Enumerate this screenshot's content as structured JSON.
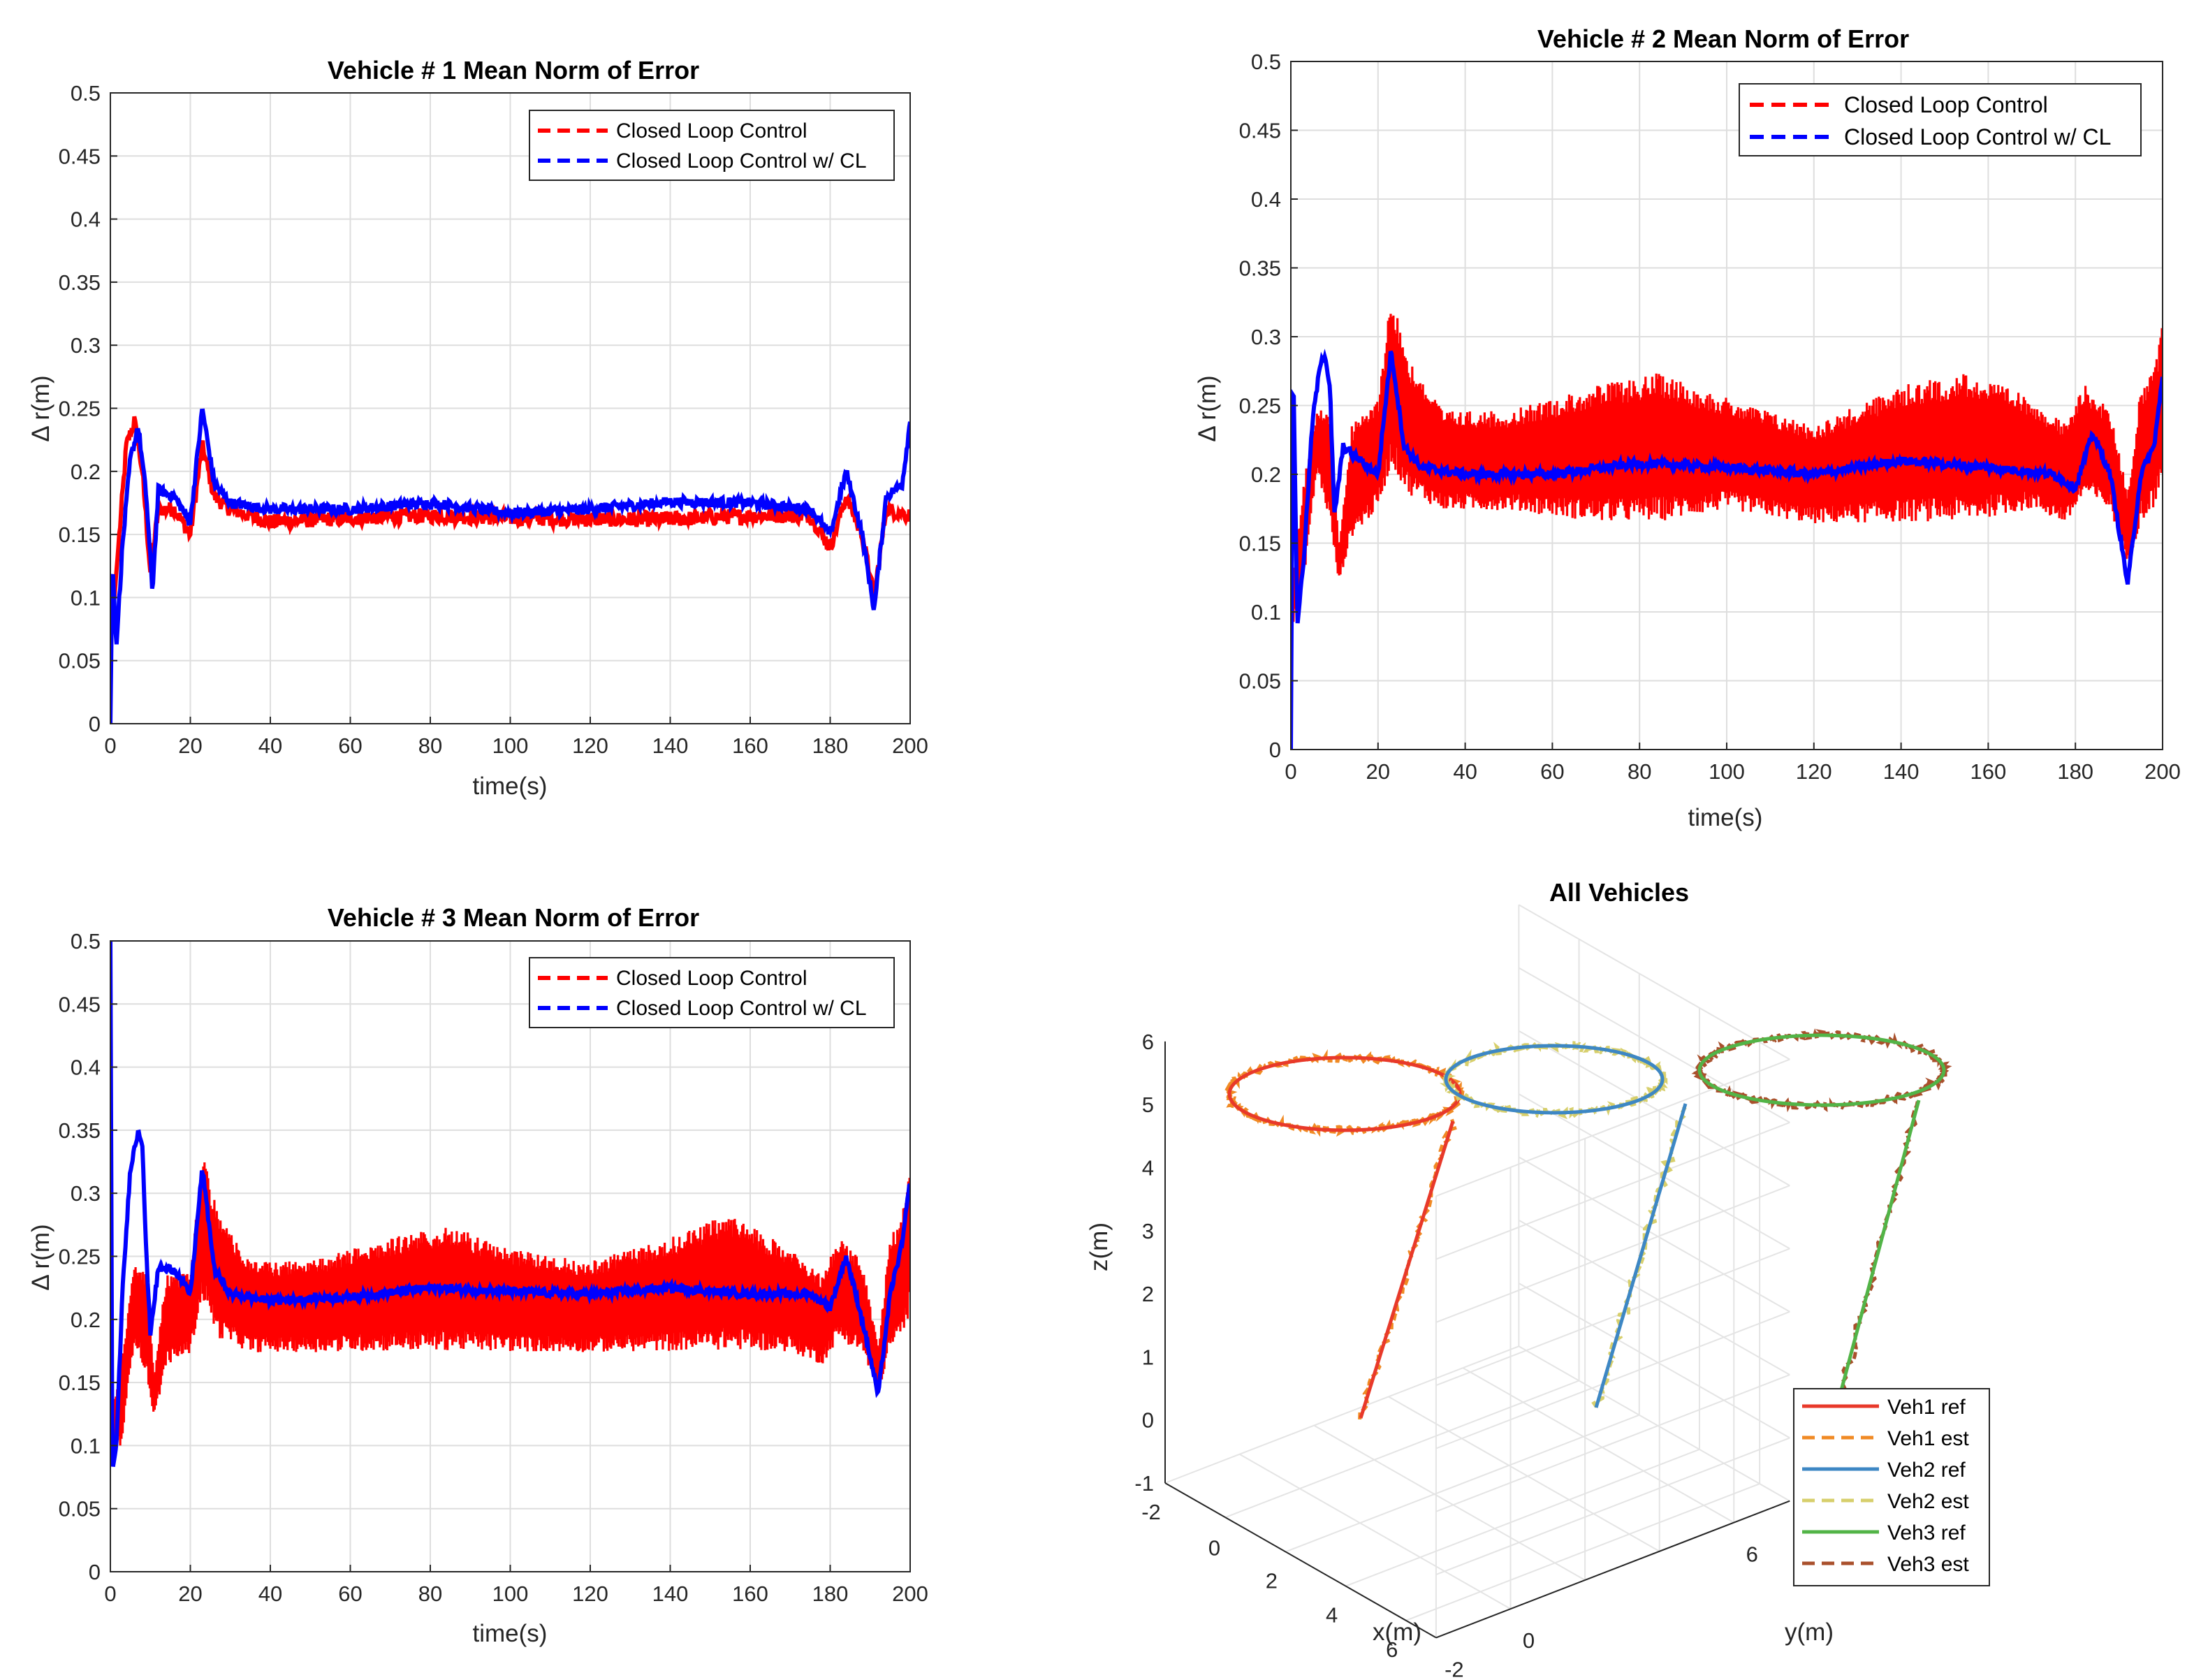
{
  "colors": {
    "red": "#ff0000",
    "blue": "#0000ff",
    "veh1": "#e8392a",
    "veh1est": "#f08a24",
    "veh2": "#3d87c4",
    "veh2est": "#d7cf6c",
    "veh3": "#52b447",
    "veh3est": "#a9502c"
  },
  "chart_data": [
    {
      "type": "line",
      "title": "Vehicle # 1 Mean Norm of Error",
      "xlabel": "time(s)",
      "ylabel": "Δ r(m)",
      "xlim": [
        0,
        200
      ],
      "ylim": [
        0,
        0.5
      ],
      "xticks": [
        "0",
        "20",
        "40",
        "60",
        "80",
        "100",
        "120",
        "140",
        "160",
        "180",
        "200"
      ],
      "yticks": [
        "0",
        "0.05",
        "0.1",
        "0.15",
        "0.2",
        "0.25",
        "0.3",
        "0.35",
        "0.4",
        "0.45",
        "0.5"
      ],
      "legend": [
        "Closed Loop Control",
        "Closed Loop Control w/ CL"
      ],
      "series": [
        {
          "name": "Closed Loop Control",
          "noise": 0.006,
          "points": [
            [
              0,
              0.06
            ],
            [
              2,
              0.14
            ],
            [
              4,
              0.22
            ],
            [
              6,
              0.24
            ],
            [
              8,
              0.2
            ],
            [
              10,
              0.12
            ],
            [
              12,
              0.17
            ],
            [
              16,
              0.17
            ],
            [
              20,
              0.15
            ],
            [
              23,
              0.22
            ],
            [
              26,
              0.18
            ],
            [
              30,
              0.17
            ],
            [
              40,
              0.16
            ],
            [
              60,
              0.163
            ],
            [
              80,
              0.165
            ],
            [
              100,
              0.163
            ],
            [
              120,
              0.162
            ],
            [
              140,
              0.162
            ],
            [
              160,
              0.165
            ],
            [
              175,
              0.165
            ],
            [
              180,
              0.14
            ],
            [
              184,
              0.18
            ],
            [
              188,
              0.15
            ],
            [
              191,
              0.1
            ],
            [
              194,
              0.17
            ],
            [
              200,
              0.165
            ]
          ]
        },
        {
          "name": "Closed Loop Control w/ CL",
          "noise": 0.004,
          "points": [
            [
              0,
              0.0
            ],
            [
              0.5,
              0.13
            ],
            [
              1.5,
              0.06
            ],
            [
              3,
              0.14
            ],
            [
              5,
              0.21
            ],
            [
              7,
              0.235
            ],
            [
              9,
              0.18
            ],
            [
              10.5,
              0.105
            ],
            [
              12,
              0.185
            ],
            [
              16,
              0.18
            ],
            [
              20,
              0.16
            ],
            [
              23,
              0.25
            ],
            [
              26,
              0.19
            ],
            [
              30,
              0.175
            ],
            [
              40,
              0.17
            ],
            [
              60,
              0.17
            ],
            [
              80,
              0.175
            ],
            [
              100,
              0.167
            ],
            [
              120,
              0.17
            ],
            [
              140,
              0.176
            ],
            [
              160,
              0.175
            ],
            [
              175,
              0.17
            ],
            [
              180,
              0.15
            ],
            [
              184,
              0.2
            ],
            [
              188,
              0.15
            ],
            [
              191,
              0.09
            ],
            [
              194,
              0.18
            ],
            [
              198,
              0.19
            ],
            [
              200,
              0.24
            ]
          ]
        }
      ]
    },
    {
      "type": "line",
      "title": "Vehicle # 2 Mean Norm of Error",
      "xlabel": "time(s)",
      "ylabel": "Δ r(m)",
      "xlim": [
        0,
        200
      ],
      "ylim": [
        0,
        0.5
      ],
      "xticks": [
        "0",
        "20",
        "40",
        "60",
        "80",
        "100",
        "120",
        "140",
        "160",
        "180",
        "200"
      ],
      "yticks": [
        "0",
        "0.05",
        "0.1",
        "0.15",
        "0.2",
        "0.25",
        "0.3",
        "0.35",
        "0.4",
        "0.45",
        "0.5"
      ],
      "legend": [
        "Closed Loop Control",
        "Closed Loop Control w/ CL"
      ],
      "series": [
        {
          "name": "Closed Loop Control",
          "band": true,
          "points": [
            [
              0,
              0.08,
              0.12
            ],
            [
              3,
              0.12,
              0.2
            ],
            [
              6,
              0.2,
              0.25
            ],
            [
              9,
              0.16,
              0.25
            ],
            [
              11,
              0.12,
              0.15
            ],
            [
              14,
              0.15,
              0.24
            ],
            [
              20,
              0.17,
              0.26
            ],
            [
              23,
              0.2,
              0.34
            ],
            [
              27,
              0.18,
              0.29
            ],
            [
              35,
              0.17,
              0.25
            ],
            [
              50,
              0.17,
              0.25
            ],
            [
              70,
              0.16,
              0.27
            ],
            [
              85,
              0.16,
              0.28
            ],
            [
              100,
              0.17,
              0.26
            ],
            [
              120,
              0.16,
              0.24
            ],
            [
              140,
              0.16,
              0.27
            ],
            [
              155,
              0.16,
              0.28
            ],
            [
              170,
              0.17,
              0.26
            ],
            [
              178,
              0.16,
              0.24
            ],
            [
              182,
              0.18,
              0.27
            ],
            [
              188,
              0.17,
              0.25
            ],
            [
              192,
              0.13,
              0.19
            ],
            [
              195,
              0.16,
              0.27
            ],
            [
              198,
              0.17,
              0.28
            ],
            [
              200,
              0.19,
              0.32
            ]
          ]
        },
        {
          "name": "Closed Loop Control w/ CL",
          "noise": 0.003,
          "points": [
            [
              0,
              0.0
            ],
            [
              0.5,
              0.29
            ],
            [
              1.5,
              0.09
            ],
            [
              3,
              0.14
            ],
            [
              5,
              0.24
            ],
            [
              7,
              0.285
            ],
            [
              8,
              0.285
            ],
            [
              9,
              0.26
            ],
            [
              10,
              0.17
            ],
            [
              12,
              0.22
            ],
            [
              16,
              0.21
            ],
            [
              20,
              0.2
            ],
            [
              23,
              0.29
            ],
            [
              26,
              0.22
            ],
            [
              30,
              0.205
            ],
            [
              40,
              0.2
            ],
            [
              60,
              0.2
            ],
            [
              80,
              0.208
            ],
            [
              100,
              0.205
            ],
            [
              120,
              0.2
            ],
            [
              140,
              0.21
            ],
            [
              160,
              0.205
            ],
            [
              175,
              0.2
            ],
            [
              180,
              0.19
            ],
            [
              184,
              0.23
            ],
            [
              188,
              0.2
            ],
            [
              192,
              0.12
            ],
            [
              195,
              0.2
            ],
            [
              198,
              0.22
            ],
            [
              200,
              0.27
            ]
          ]
        }
      ]
    },
    {
      "type": "line",
      "title": "Vehicle # 3 Mean Norm of Error",
      "xlabel": "time(s)",
      "ylabel": "Δ r(m)",
      "xlim": [
        0,
        200
      ],
      "ylim": [
        0,
        0.5
      ],
      "xticks": [
        "0",
        "20",
        "40",
        "60",
        "80",
        "100",
        "120",
        "140",
        "160",
        "180",
        "200"
      ],
      "yticks": [
        "0",
        "0.05",
        "0.1",
        "0.15",
        "0.2",
        "0.25",
        "0.3",
        "0.35",
        "0.4",
        "0.45",
        "0.5"
      ],
      "legend": [
        "Closed Loop Control",
        "Closed Loop Control w/ CL"
      ],
      "series": [
        {
          "name": "Closed Loop Control",
          "band": true,
          "points": [
            [
              0,
              0.08,
              0.12
            ],
            [
              3,
              0.1,
              0.18
            ],
            [
              6,
              0.18,
              0.25
            ],
            [
              9,
              0.15,
              0.24
            ],
            [
              11,
              0.12,
              0.16
            ],
            [
              14,
              0.16,
              0.24
            ],
            [
              20,
              0.17,
              0.24
            ],
            [
              23,
              0.21,
              0.34
            ],
            [
              27,
              0.18,
              0.29
            ],
            [
              35,
              0.17,
              0.25
            ],
            [
              50,
              0.17,
              0.25
            ],
            [
              70,
              0.17,
              0.27
            ],
            [
              85,
              0.17,
              0.28
            ],
            [
              100,
              0.17,
              0.26
            ],
            [
              120,
              0.17,
              0.25
            ],
            [
              140,
              0.17,
              0.27
            ],
            [
              155,
              0.17,
              0.29
            ],
            [
              170,
              0.17,
              0.26
            ],
            [
              178,
              0.16,
              0.24
            ],
            [
              182,
              0.18,
              0.27
            ],
            [
              188,
              0.17,
              0.25
            ],
            [
              192,
              0.14,
              0.18
            ],
            [
              195,
              0.17,
              0.27
            ],
            [
              198,
              0.18,
              0.29
            ],
            [
              200,
              0.2,
              0.34
            ]
          ]
        },
        {
          "name": "Closed Loop Control w/ CL",
          "noise": 0.003,
          "points": [
            [
              0,
              0.5
            ],
            [
              0.5,
              0.08
            ],
            [
              1.5,
              0.1
            ],
            [
              3,
              0.22
            ],
            [
              5,
              0.32
            ],
            [
              7,
              0.35
            ],
            [
              8,
              0.34
            ],
            [
              9,
              0.25
            ],
            [
              10,
              0.19
            ],
            [
              12,
              0.24
            ],
            [
              16,
              0.24
            ],
            [
              20,
              0.22
            ],
            [
              23,
              0.32
            ],
            [
              26,
              0.24
            ],
            [
              30,
              0.22
            ],
            [
              40,
              0.215
            ],
            [
              60,
              0.218
            ],
            [
              80,
              0.225
            ],
            [
              100,
              0.222
            ],
            [
              120,
              0.22
            ],
            [
              140,
              0.225
            ],
            [
              160,
              0.22
            ],
            [
              175,
              0.22
            ],
            [
              180,
              0.21
            ],
            [
              184,
              0.25
            ],
            [
              188,
              0.2
            ],
            [
              192,
              0.14
            ],
            [
              195,
              0.22
            ],
            [
              198,
              0.26
            ],
            [
              200,
              0.31
            ]
          ]
        }
      ]
    },
    {
      "type": "line3d",
      "title": "All Vehicles",
      "xlabel": "x(m)",
      "ylabel": "y(m)",
      "zlabel": "z(m)",
      "xticks": [
        "-2",
        "0",
        "2",
        "4",
        "6"
      ],
      "yticks": [
        "-2",
        "0",
        "6"
      ],
      "zticks": [
        "-1",
        "0",
        "1",
        "2",
        "3",
        "4",
        "5",
        "6"
      ],
      "zlim": [
        -1,
        6
      ],
      "legend": [
        "Veh1 ref",
        "Veh1 est",
        "Veh2 ref",
        "Veh2 est",
        "Veh3 ref",
        "Veh3 est"
      ],
      "circles": [
        {
          "name": "Veh1",
          "z": 5
        },
        {
          "name": "Veh2",
          "z": 5
        },
        {
          "name": "Veh3",
          "z": 5
        }
      ]
    }
  ]
}
